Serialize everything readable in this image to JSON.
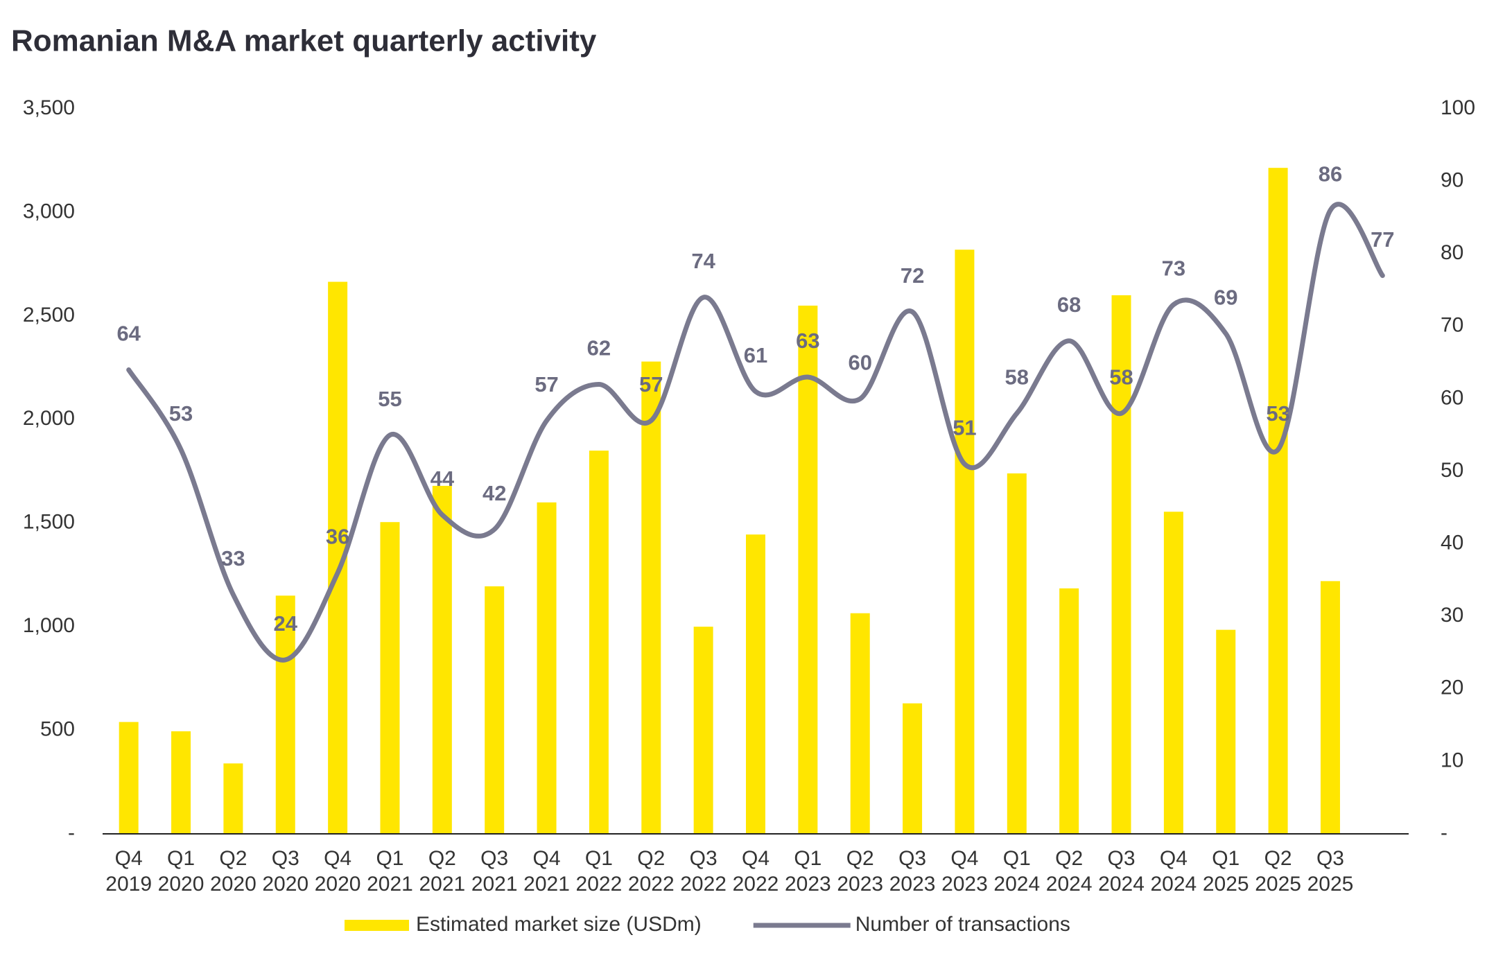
{
  "chart_data": {
    "type": "bar-line",
    "title": "Romanian M&A market quarterly activity",
    "categories": [
      [
        "Q4",
        "2019"
      ],
      [
        "Q1",
        "2020"
      ],
      [
        "Q2",
        "2020"
      ],
      [
        "Q3",
        "2020"
      ],
      [
        "Q4",
        "2020"
      ],
      [
        "Q1",
        "2021"
      ],
      [
        "Q2",
        "2021"
      ],
      [
        "Q3",
        "2021"
      ],
      [
        "Q4",
        "2021"
      ],
      [
        "Q1",
        "2022"
      ],
      [
        "Q2",
        "2022"
      ],
      [
        "Q3",
        "2022"
      ],
      [
        "Q4",
        "2022"
      ],
      [
        "Q1",
        "2023"
      ],
      [
        "Q2",
        "2023"
      ],
      [
        "Q3",
        "2023"
      ],
      [
        "Q4",
        "2023"
      ],
      [
        "Q1",
        "2024"
      ],
      [
        "Q2",
        "2024"
      ],
      [
        "Q3",
        "2024"
      ],
      [
        "Q4",
        "2024"
      ],
      [
        "Q1",
        "2025"
      ],
      [
        "Q2",
        "2025"
      ],
      [
        "Q3",
        "2025"
      ],
      null
    ],
    "series": [
      {
        "name": "Estimated market size (USDm)",
        "type": "bar",
        "color": "#ffe600",
        "values": [
          540,
          495,
          340,
          1150,
          2665,
          1505,
          1680,
          1195,
          1600,
          1850,
          2280,
          1000,
          1445,
          2550,
          1065,
          630,
          2820,
          1740,
          1185,
          2600,
          1555,
          985,
          3215,
          1220,
          null
        ]
      },
      {
        "name": "Number of transactions",
        "type": "line",
        "axis": "y2",
        "color": "#7a7a8f",
        "values": [
          64,
          53,
          33,
          24,
          36,
          55,
          44,
          42,
          57,
          62,
          57,
          74,
          61,
          63,
          60,
          72,
          51,
          58,
          68,
          58,
          73,
          69,
          53,
          86,
          77
        ]
      }
    ],
    "ylim": [
      0,
      3500
    ],
    "yticks": [
      {
        "value": 0,
        "label": "-"
      },
      500,
      {
        "value": 1000,
        "label": "1,000"
      },
      {
        "value": 1500,
        "label": "1,500"
      },
      {
        "value": 2000,
        "label": "2,000"
      },
      {
        "value": 2500,
        "label": "2,500"
      },
      {
        "value": 3000,
        "label": "3,000"
      },
      {
        "value": 3500,
        "label": "3,500"
      }
    ],
    "y2lim": [
      0,
      100
    ],
    "y2ticks": [
      {
        "value": 0,
        "label": "-"
      },
      10,
      20,
      30,
      40,
      50,
      60,
      70,
      80,
      90,
      100
    ],
    "legend": "bottom"
  }
}
